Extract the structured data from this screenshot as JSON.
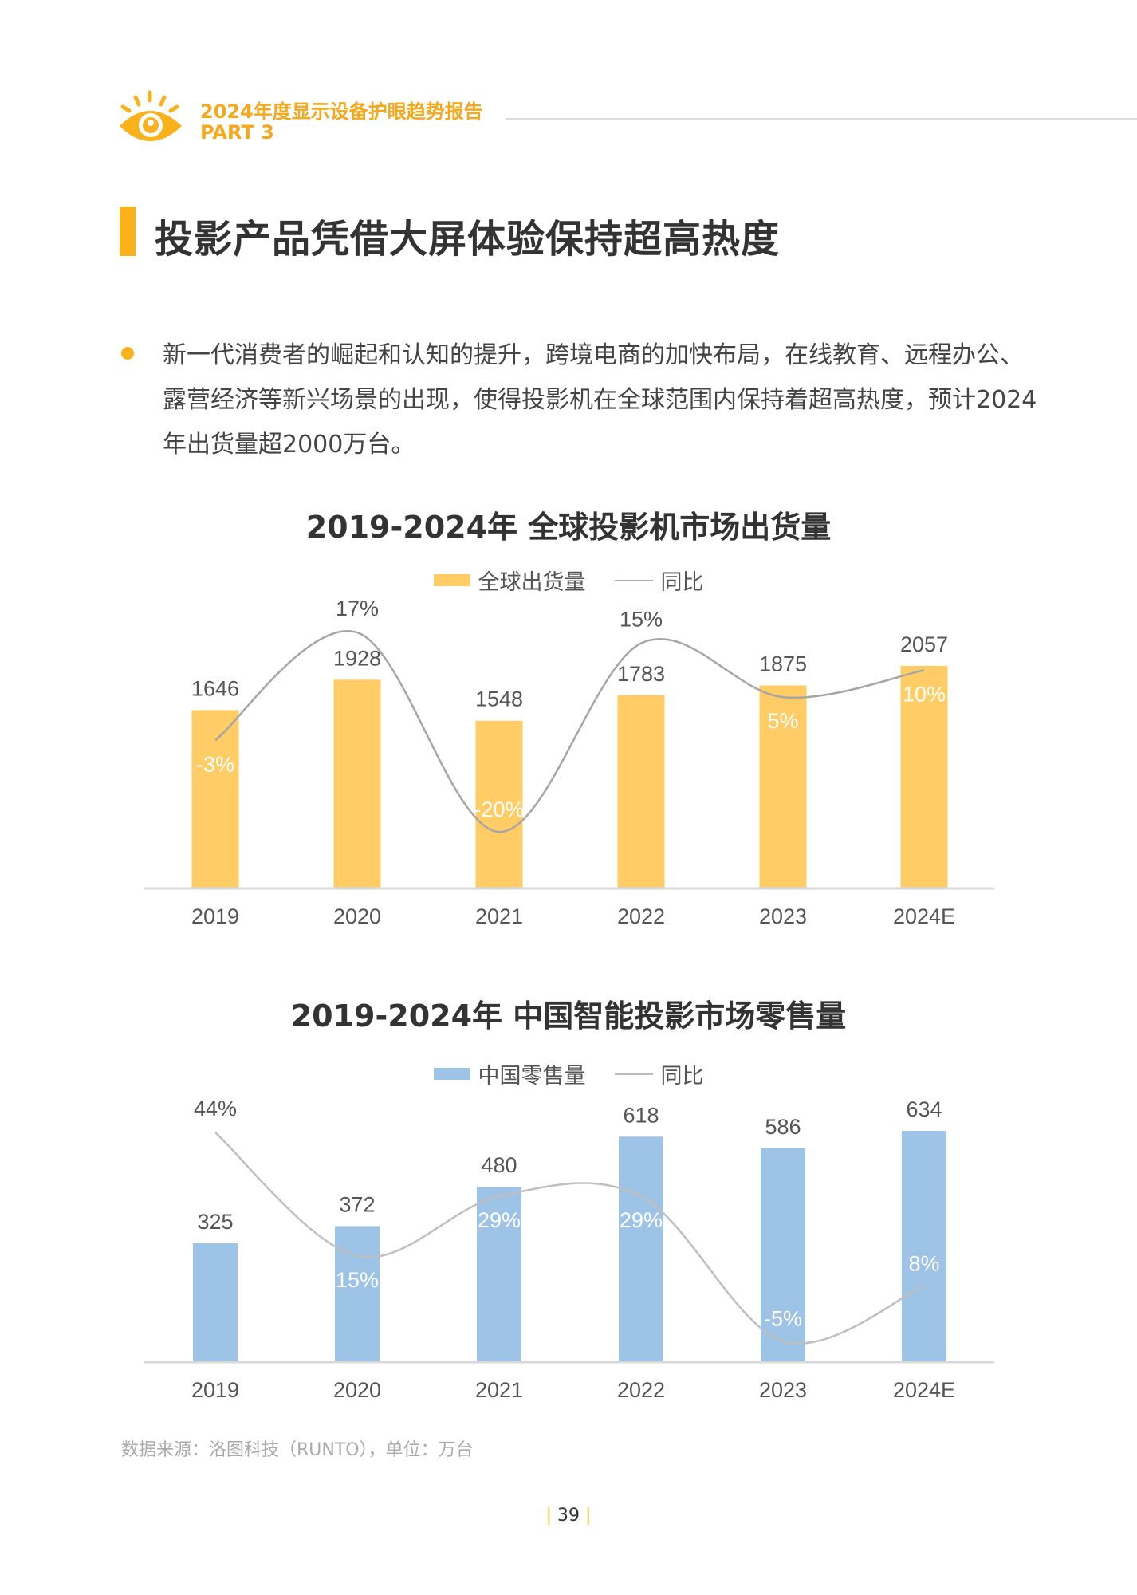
{
  "header": {
    "logo_icon": "eye-icon",
    "report_title": "2024年度显示设备护眼趋势报告",
    "part": "PART 3",
    "accent_color": "#F5A81C"
  },
  "section_title": "投影产品凭借大屏体验保持超高热度",
  "bullet_text": "新一代消费者的崛起和认知的提升，跨境电商的加快布局，在线教育、远程办公、露营经济等新兴场景的出现，使得投影机在全球范围内保持着超高热度，预计2024年出货量超2000万台。",
  "chart_data": [
    {
      "type": "bar",
      "title": "2019-2024年 全球投影机市场出货量",
      "categories": [
        "2019",
        "2020",
        "2021",
        "2022",
        "2023",
        "2024E"
      ],
      "series": [
        {
          "name": "全球出货量",
          "kind": "bar",
          "color": "#FFCC66",
          "values": [
            1646,
            1928,
            1548,
            1783,
            1875,
            2057
          ],
          "labels": [
            "1646",
            "1928",
            "1548",
            "1783",
            "1875",
            "2057"
          ]
        },
        {
          "name": "同比",
          "kind": "line",
          "color": "#A6A6A6",
          "values": [
            -3,
            17,
            -20,
            15,
            5,
            10
          ],
          "labels": [
            "-3%",
            "17%",
            "-20%",
            "15%",
            "5%",
            "10%"
          ]
        }
      ],
      "grid": false,
      "legend": "top-center"
    },
    {
      "type": "bar",
      "title": "2019-2024年 中国智能投影市场零售量",
      "categories": [
        "2019",
        "2020",
        "2021",
        "2022",
        "2023",
        "2024E"
      ],
      "series": [
        {
          "name": "中国零售量",
          "kind": "bar",
          "color": "#9DC3E6",
          "values": [
            325,
            372,
            480,
            618,
            586,
            634
          ],
          "labels": [
            "325",
            "372",
            "480",
            "618",
            "586",
            "634"
          ]
        },
        {
          "name": "同比",
          "kind": "line",
          "color": "#BFBFBF",
          "values": [
            44,
            15,
            29,
            29,
            -5,
            8
          ],
          "labels": [
            "44%",
            "15%",
            "29%",
            "29%",
            "-5%",
            "8%"
          ]
        }
      ],
      "grid": false,
      "legend": "top-center"
    }
  ],
  "source_note": "数据来源：洛图科技（RUNTO），单位：万台",
  "page_number": "39"
}
